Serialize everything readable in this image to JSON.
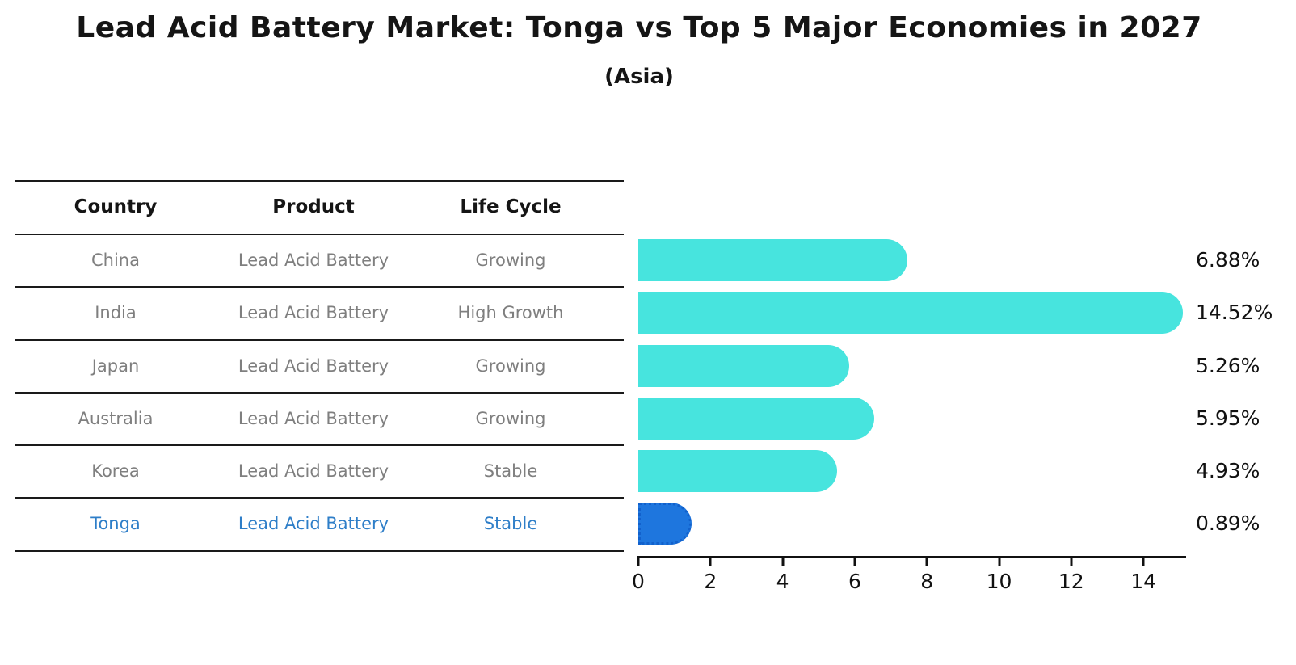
{
  "title": "Lead Acid Battery Market: Tonga vs Top 5 Major Economies in 2027",
  "subtitle": "(Asia)",
  "table": {
    "columns": [
      "Country",
      "Product",
      "Life Cycle"
    ],
    "rows": [
      {
        "country": "China",
        "product": "Lead Acid Battery",
        "life_cycle": "Growing",
        "highlight": false
      },
      {
        "country": "India",
        "product": "Lead Acid Battery",
        "life_cycle": "High Growth",
        "highlight": false
      },
      {
        "country": "Japan",
        "product": "Lead Acid Battery",
        "life_cycle": "Growing",
        "highlight": false
      },
      {
        "country": "Australia",
        "product": "Lead Acid Battery",
        "life_cycle": "Growing",
        "highlight": false
      },
      {
        "country": "Korea",
        "product": "Lead Acid Battery",
        "life_cycle": "Stable",
        "highlight": false
      },
      {
        "country": "Tonga",
        "product": "Lead Acid Battery",
        "life_cycle": "Stable",
        "highlight": true
      }
    ]
  },
  "chart_data": {
    "type": "bar",
    "orientation": "horizontal",
    "title": "Lead Acid Battery Market: Tonga vs Top 5 Major Economies in 2027",
    "subtitle": "(Asia)",
    "categories": [
      "China",
      "India",
      "Japan",
      "Australia",
      "Korea",
      "Tonga"
    ],
    "values": [
      6.88,
      14.52,
      5.26,
      5.95,
      4.93,
      0.89
    ],
    "value_labels": [
      "6.88%",
      "14.52%",
      "5.26%",
      "5.95%",
      "4.93%",
      "0.89%"
    ],
    "xlabel": "",
    "ylabel": "",
    "xticks": [
      0,
      2,
      4,
      6,
      8,
      10,
      12,
      14
    ],
    "xlim": [
      0,
      15.25
    ],
    "grid": false,
    "legend": false,
    "highlight_index": 5,
    "bar_color": "#47e4de",
    "highlight_bar_color": "#1e76de",
    "highlight_text_color": "#2e7ec8",
    "text_color_muted": "#7f7f7f",
    "text_color": "#151515"
  }
}
